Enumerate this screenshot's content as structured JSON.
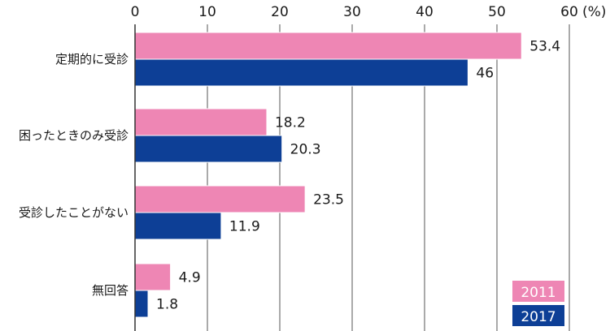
{
  "chart_data": {
    "type": "bar",
    "orientation": "horizontal",
    "categories": [
      "定期的に受診",
      "困ったときのみ受診",
      "受診したことがない",
      "無回答"
    ],
    "series": [
      {
        "name": "2011",
        "color": "#ee86b4",
        "values": [
          53.4,
          18.2,
          23.5,
          4.9
        ]
      },
      {
        "name": "2017",
        "color": "#0d3f96",
        "values": [
          46,
          20.3,
          11.9,
          1.8
        ]
      }
    ],
    "data_labels": [
      [
        "53.4",
        "18.2",
        "23.5",
        "4.9"
      ],
      [
        "46",
        "20.3",
        "11.9",
        "1.8"
      ]
    ],
    "x_ticks": [
      "0",
      "10",
      "20",
      "30",
      "40",
      "50",
      "60"
    ],
    "x_unit": "(%)",
    "xlim": [
      0,
      60
    ],
    "grid": true,
    "legend": "bottom-right"
  }
}
